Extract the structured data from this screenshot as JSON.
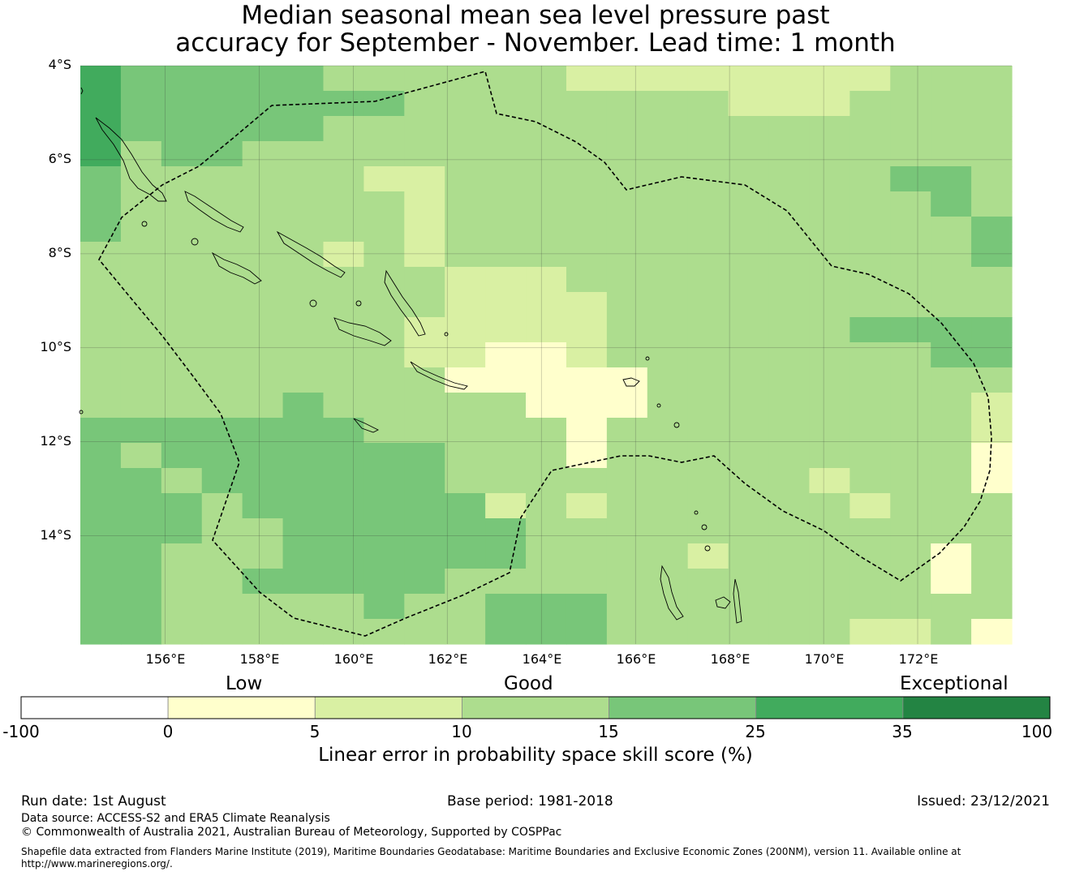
{
  "title": {
    "line1": "Median seasonal mean sea level pressure past",
    "line2": "accuracy for September - November. Lead time: 1 month"
  },
  "map": {
    "lat_labels": [
      "4°S",
      "6°S",
      "8°S",
      "10°S",
      "12°S",
      "14°S"
    ],
    "lon_labels": [
      "156°E",
      "158°E",
      "160°E",
      "162°E",
      "164°E",
      "166°E",
      "168°E",
      "170°E",
      "172°E"
    ]
  },
  "colorbar": {
    "categories": [
      "Low",
      "Good",
      "Exceptional"
    ],
    "ticks": [
      "-100",
      "0",
      "5",
      "10",
      "15",
      "25",
      "35",
      "100"
    ],
    "colors": [
      "#ffffff",
      "#ffffcc",
      "#d9f0a3",
      "#addd8e",
      "#78c679",
      "#41ab5d",
      "#238443"
    ],
    "xlabel": "Linear error in probability space skill score (%)"
  },
  "footer": {
    "run_date": "Run date: 1st August",
    "base_period": "Base period: 1981-2018",
    "issued": "Issued: 23/12/2021",
    "data_source": "Data source: ACCESS-S2 and ERA5 Climate Reanalysis",
    "copyright": "© Commonwealth of Australia 2021, Australian Bureau of Meteorology, Supported by COSPPac",
    "shapefile_line1": "Shapefile data extracted from Flanders Marine Institute (2019), Maritime Boundaries Geodatabase: Maritime Boundaries and Exclusive Economic Zones (200NM), version 11. Available online at",
    "shapefile_line2": "http://www.marineregions.org/."
  },
  "chart_data": {
    "type": "heatmap",
    "xlabel": "",
    "ylabel": "",
    "lon_range": [
      154.2,
      174
    ],
    "lat_range": [
      -16.3,
      -4
    ],
    "cell_size_deg": 0.82,
    "grid_levels": [
      [
        5,
        4,
        4,
        4,
        4,
        4,
        3,
        3,
        3,
        3,
        3,
        3,
        2,
        2,
        2,
        2,
        2,
        2,
        2,
        2,
        3,
        3,
        3
      ],
      [
        5,
        4,
        4,
        4,
        4,
        4,
        4,
        4,
        3,
        3,
        3,
        3,
        3,
        3,
        3,
        3,
        2,
        2,
        2,
        3,
        3,
        3,
        3
      ],
      [
        5,
        4,
        4,
        4,
        4,
        4,
        3,
        3,
        3,
        3,
        3,
        3,
        3,
        3,
        3,
        3,
        3,
        3,
        3,
        3,
        3,
        3,
        3
      ],
      [
        5,
        3,
        4,
        4,
        3,
        3,
        3,
        3,
        3,
        3,
        3,
        3,
        3,
        3,
        3,
        3,
        3,
        3,
        3,
        3,
        3,
        3,
        3
      ],
      [
        4,
        3,
        3,
        3,
        3,
        3,
        3,
        2,
        2,
        3,
        3,
        3,
        3,
        3,
        3,
        3,
        3,
        3,
        3,
        3,
        4,
        4,
        3
      ],
      [
        4,
        3,
        3,
        3,
        3,
        3,
        3,
        3,
        2,
        3,
        3,
        3,
        3,
        3,
        3,
        3,
        3,
        3,
        3,
        3,
        3,
        4,
        3
      ],
      [
        4,
        3,
        3,
        3,
        3,
        3,
        3,
        3,
        2,
        3,
        3,
        3,
        3,
        3,
        3,
        3,
        3,
        3,
        3,
        3,
        3,
        3,
        4
      ],
      [
        3,
        3,
        3,
        3,
        3,
        3,
        2,
        3,
        2,
        3,
        3,
        3,
        3,
        3,
        3,
        3,
        3,
        3,
        3,
        3,
        3,
        3,
        4
      ],
      [
        3,
        3,
        3,
        3,
        3,
        3,
        3,
        3,
        3,
        2,
        2,
        2,
        3,
        3,
        3,
        3,
        3,
        3,
        3,
        3,
        3,
        3,
        3
      ],
      [
        3,
        3,
        3,
        3,
        3,
        3,
        3,
        3,
        3,
        2,
        2,
        2,
        2,
        3,
        3,
        3,
        3,
        3,
        3,
        3,
        3,
        3,
        3
      ],
      [
        3,
        3,
        3,
        3,
        3,
        3,
        3,
        3,
        2,
        2,
        2,
        2,
        2,
        3,
        3,
        3,
        3,
        3,
        3,
        4,
        4,
        4,
        4
      ],
      [
        3,
        3,
        3,
        3,
        3,
        3,
        3,
        3,
        2,
        2,
        1,
        1,
        2,
        3,
        3,
        3,
        3,
        3,
        3,
        3,
        3,
        4,
        4
      ],
      [
        3,
        3,
        3,
        3,
        3,
        3,
        3,
        3,
        3,
        1,
        1,
        1,
        1,
        1,
        3,
        3,
        3,
        3,
        3,
        3,
        3,
        3,
        3
      ],
      [
        3,
        3,
        3,
        3,
        3,
        4,
        3,
        3,
        3,
        3,
        3,
        1,
        1,
        1,
        3,
        3,
        3,
        3,
        3,
        3,
        3,
        3,
        2
      ],
      [
        4,
        4,
        4,
        4,
        4,
        4,
        4,
        3,
        3,
        3,
        3,
        3,
        1,
        3,
        3,
        3,
        3,
        3,
        3,
        3,
        3,
        3,
        2
      ],
      [
        4,
        3,
        4,
        4,
        4,
        4,
        4,
        4,
        4,
        3,
        3,
        3,
        1,
        3,
        3,
        3,
        3,
        3,
        3,
        3,
        3,
        3,
        1
      ],
      [
        4,
        4,
        3,
        4,
        4,
        4,
        4,
        4,
        4,
        3,
        3,
        3,
        3,
        3,
        3,
        3,
        3,
        3,
        2,
        3,
        3,
        3,
        1
      ],
      [
        4,
        4,
        4,
        3,
        4,
        4,
        4,
        4,
        4,
        4,
        2,
        3,
        2,
        3,
        3,
        3,
        3,
        3,
        3,
        2,
        3,
        3,
        3
      ],
      [
        4,
        4,
        4,
        3,
        3,
        4,
        4,
        4,
        4,
        4,
        4,
        3,
        3,
        3,
        3,
        3,
        3,
        3,
        3,
        3,
        3,
        3,
        3
      ],
      [
        4,
        4,
        3,
        3,
        3,
        4,
        4,
        4,
        4,
        4,
        4,
        3,
        3,
        3,
        3,
        2,
        3,
        3,
        3,
        3,
        3,
        1,
        3
      ],
      [
        4,
        4,
        3,
        3,
        4,
        4,
        4,
        4,
        4,
        3,
        3,
        3,
        3,
        3,
        3,
        3,
        3,
        3,
        3,
        3,
        3,
        1,
        3
      ],
      [
        4,
        4,
        3,
        3,
        3,
        3,
        3,
        4,
        3,
        3,
        4,
        4,
        4,
        3,
        3,
        3,
        3,
        3,
        3,
        3,
        3,
        3,
        3
      ],
      [
        4,
        4,
        3,
        3,
        3,
        3,
        3,
        3,
        3,
        3,
        4,
        4,
        4,
        3,
        3,
        3,
        3,
        3,
        3,
        2,
        2,
        3,
        1
      ]
    ]
  }
}
